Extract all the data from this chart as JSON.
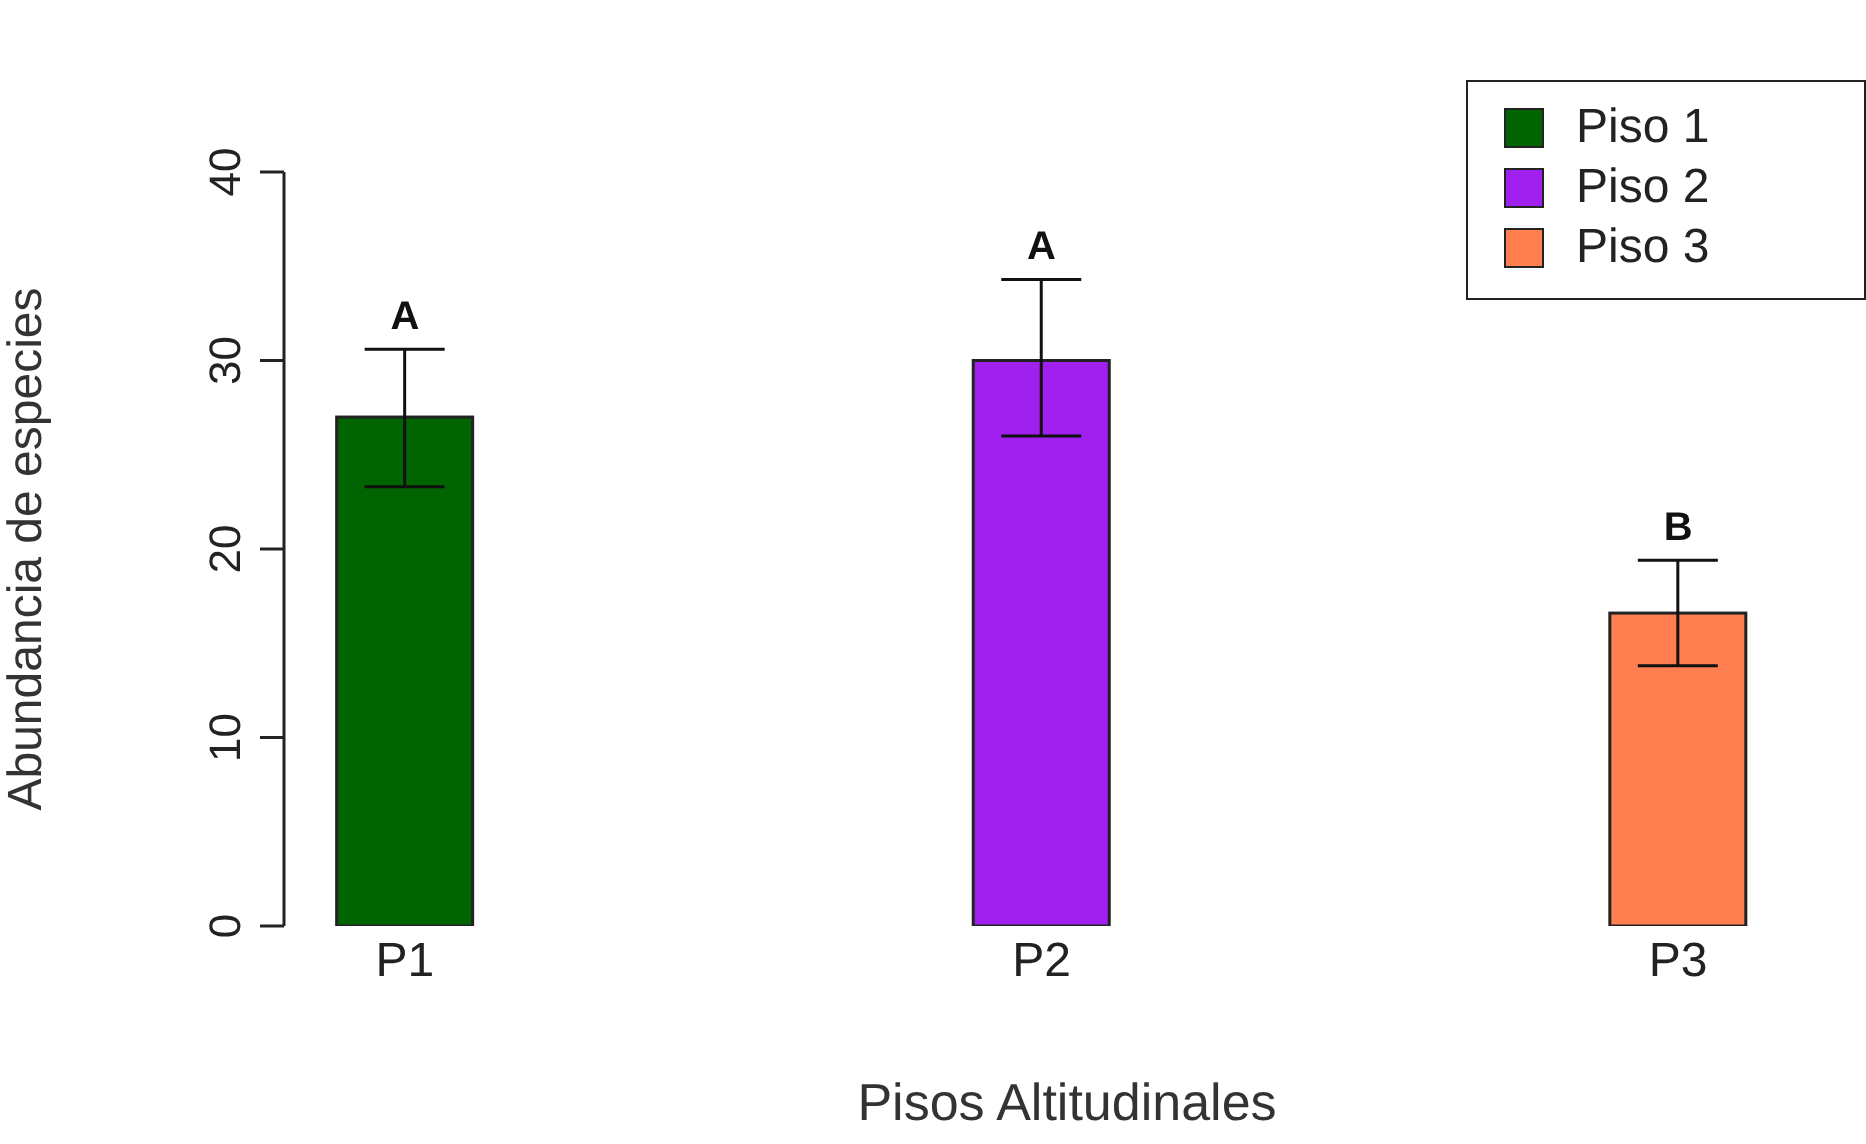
{
  "chart_data": {
    "type": "bar",
    "xlabel": "Pisos Altitudinales",
    "ylabel": "Abundancia de especies",
    "categories": [
      "P1",
      "P2",
      "P3"
    ],
    "series": [
      {
        "name": "Piso 1",
        "color": "#006400",
        "values": [
          27,
          null,
          null
        ],
        "errors": [
          [
            23.3,
            30.6
          ],
          null,
          null
        ]
      },
      {
        "name": "Piso 2",
        "color": "#a020f0",
        "values": [
          null,
          30,
          null
        ],
        "errors": [
          null,
          [
            26,
            34.3
          ],
          null
        ]
      },
      {
        "name": "Piso 3",
        "color": "#ff7f50",
        "values": [
          null,
          null,
          16.6
        ],
        "errors": [
          null,
          null,
          [
            13.8,
            19.4
          ]
        ]
      }
    ],
    "ylim": [
      0,
      40
    ],
    "yticks": [
      0,
      10,
      20,
      30,
      40
    ],
    "grid": false,
    "legend": "top right",
    "annotations": [
      "A",
      "A",
      "B"
    ]
  }
}
